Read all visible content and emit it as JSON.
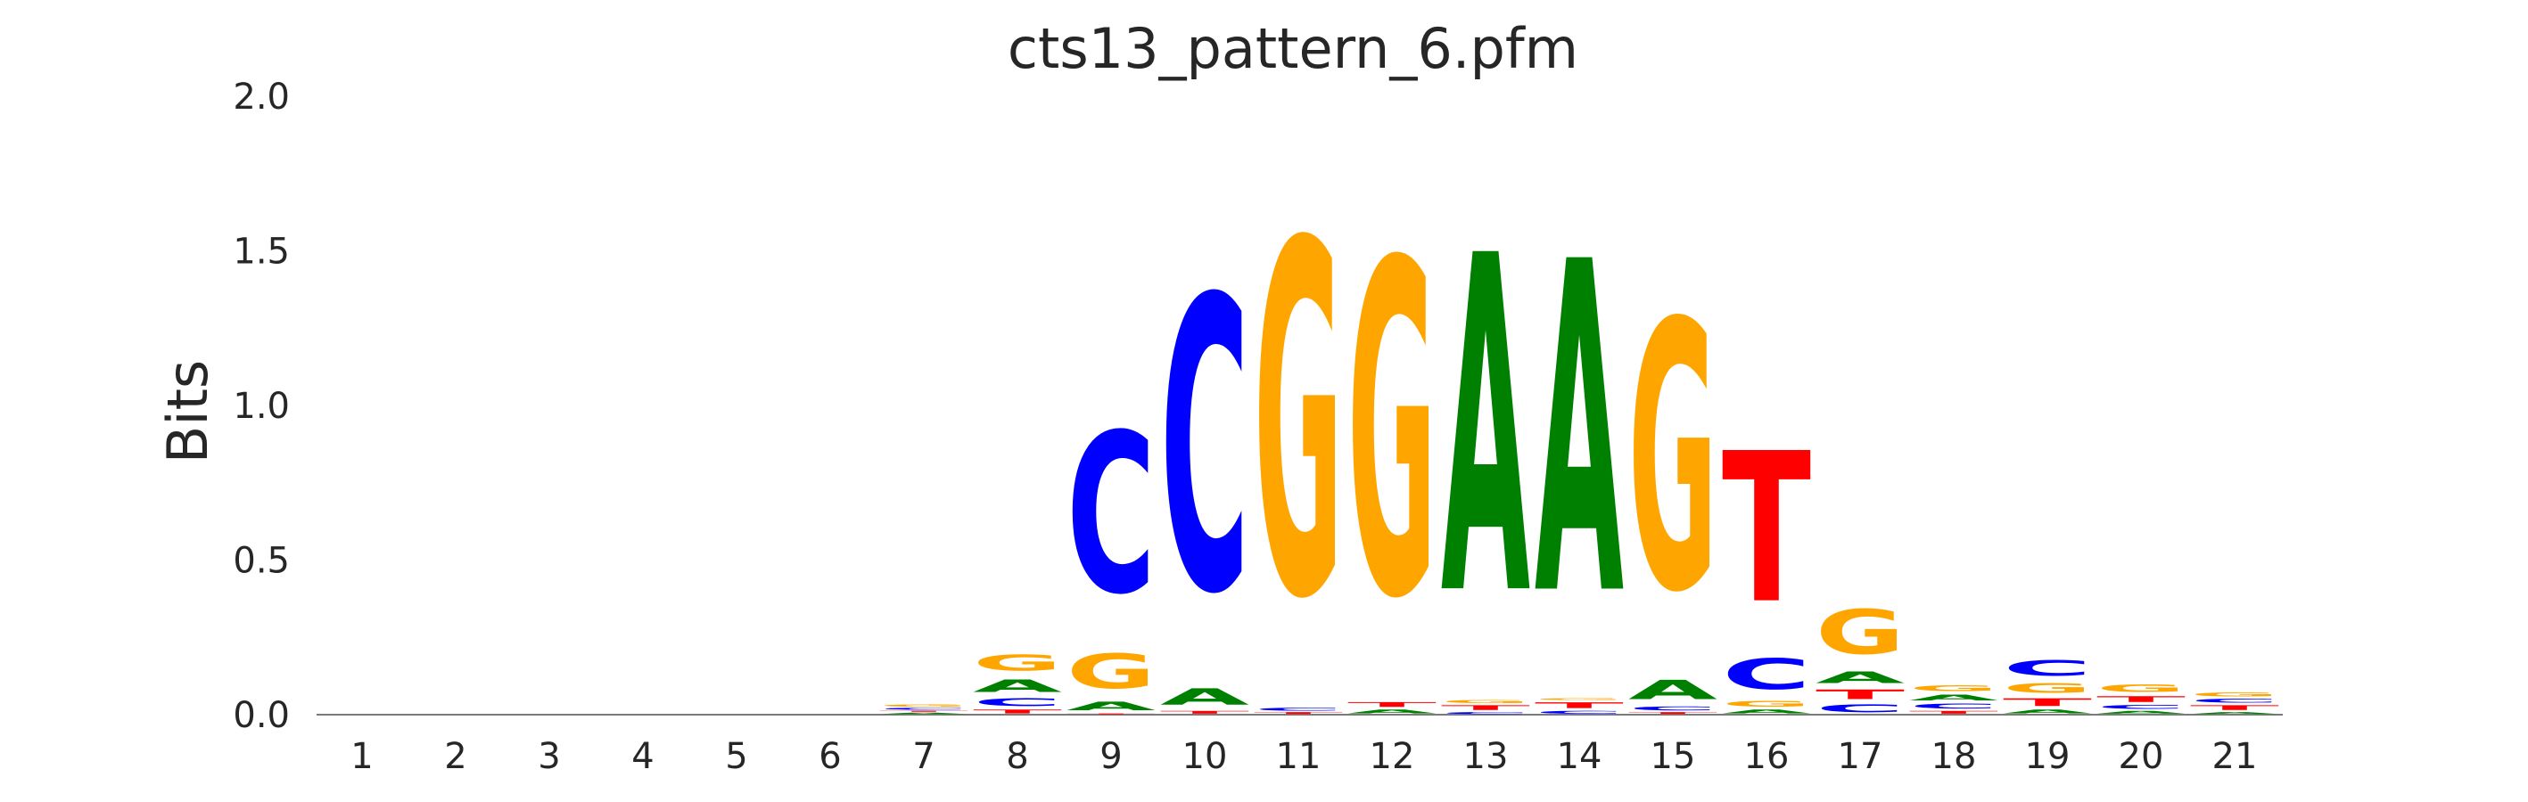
{
  "chart_data": {
    "type": "sequence-logo",
    "title": "cts13_pattern_6.pfm",
    "ylabel": "Bits",
    "xlabel": "",
    "ylim": [
      0,
      2.0
    ],
    "y_ticks": [
      "0.0",
      "0.5",
      "1.0",
      "1.5",
      "2.0"
    ],
    "categories": [
      "1",
      "2",
      "3",
      "4",
      "5",
      "6",
      "7",
      "8",
      "9",
      "10",
      "11",
      "12",
      "13",
      "14",
      "15",
      "16",
      "17",
      "18",
      "19",
      "20",
      "21"
    ],
    "letter_colors": {
      "A": "#008000",
      "C": "#0000ff",
      "G": "#ffa500",
      "T": "#ff0000"
    },
    "positions": [
      {
        "pos": "1",
        "stack": []
      },
      {
        "pos": "2",
        "stack": []
      },
      {
        "pos": "3",
        "stack": []
      },
      {
        "pos": "4",
        "stack": []
      },
      {
        "pos": "5",
        "stack": []
      },
      {
        "pos": "6",
        "stack": []
      },
      {
        "pos": "7",
        "stack": [
          {
            "letter": "A",
            "height": 0.008
          },
          {
            "letter": "T",
            "height": 0.006
          },
          {
            "letter": "C",
            "height": 0.01
          },
          {
            "letter": "G",
            "height": 0.012
          }
        ]
      },
      {
        "pos": "8",
        "stack": [
          {
            "letter": "T",
            "height": 0.02
          },
          {
            "letter": "C",
            "height": 0.04
          },
          {
            "letter": "A",
            "height": 0.065
          },
          {
            "letter": "G",
            "height": 0.085
          }
        ]
      },
      {
        "pos": "9",
        "stack": [
          {
            "letter": "T",
            "height": 0.005
          },
          {
            "letter": "A",
            "height": 0.045
          },
          {
            "letter": "G",
            "height": 0.18
          },
          {
            "letter": "C",
            "height": 0.83
          }
        ]
      },
      {
        "pos": "10",
        "stack": [
          {
            "letter": "T",
            "height": 0.015
          },
          {
            "letter": "A",
            "height": 0.085
          },
          {
            "letter": "C",
            "height": 1.52
          }
        ]
      },
      {
        "pos": "11",
        "stack": [
          {
            "letter": "T",
            "height": 0.01
          },
          {
            "letter": "C",
            "height": 0.015
          },
          {
            "letter": "G",
            "height": 1.83
          }
        ]
      },
      {
        "pos": "12",
        "stack": [
          {
            "letter": "A",
            "height": 0.02
          },
          {
            "letter": "T",
            "height": 0.025
          },
          {
            "letter": "G",
            "height": 1.73
          }
        ]
      },
      {
        "pos": "13",
        "stack": [
          {
            "letter": "C",
            "height": 0.01
          },
          {
            "letter": "T",
            "height": 0.025
          },
          {
            "letter": "G",
            "height": 0.015
          },
          {
            "letter": "A",
            "height": 1.75
          }
        ]
      },
      {
        "pos": "14",
        "stack": [
          {
            "letter": "C",
            "height": 0.015
          },
          {
            "letter": "T",
            "height": 0.03
          },
          {
            "letter": "G",
            "height": 0.01
          },
          {
            "letter": "A",
            "height": 1.72
          }
        ]
      },
      {
        "pos": "15",
        "stack": [
          {
            "letter": "T",
            "height": 0.01
          },
          {
            "letter": "C",
            "height": 0.02
          },
          {
            "letter": "A",
            "height": 0.1
          },
          {
            "letter": "G",
            "height": 1.39
          }
        ]
      },
      {
        "pos": "16",
        "stack": [
          {
            "letter": "A",
            "height": 0.02
          },
          {
            "letter": "G",
            "height": 0.03
          },
          {
            "letter": "C",
            "height": 0.16
          },
          {
            "letter": "T",
            "height": 0.78
          }
        ]
      },
      {
        "pos": "17",
        "stack": [
          {
            "letter": "C",
            "height": 0.04
          },
          {
            "letter": "T",
            "height": 0.05
          },
          {
            "letter": "A",
            "height": 0.06
          },
          {
            "letter": "G",
            "height": 0.23
          }
        ]
      },
      {
        "pos": "18",
        "stack": [
          {
            "letter": "T",
            "height": 0.015
          },
          {
            "letter": "C",
            "height": 0.025
          },
          {
            "letter": "A",
            "height": 0.03
          },
          {
            "letter": "G",
            "height": 0.03
          }
        ]
      },
      {
        "pos": "19",
        "stack": [
          {
            "letter": "A",
            "height": 0.02
          },
          {
            "letter": "T",
            "height": 0.04
          },
          {
            "letter": "G",
            "height": 0.05
          },
          {
            "letter": "C",
            "height": 0.08
          }
        ]
      },
      {
        "pos": "20",
        "stack": [
          {
            "letter": "A",
            "height": 0.015
          },
          {
            "letter": "C",
            "height": 0.02
          },
          {
            "letter": "T",
            "height": 0.03
          },
          {
            "letter": "G",
            "height": 0.04
          }
        ]
      },
      {
        "pos": "21",
        "stack": [
          {
            "letter": "A",
            "height": 0.01
          },
          {
            "letter": "T",
            "height": 0.025
          },
          {
            "letter": "C",
            "height": 0.02
          },
          {
            "letter": "G",
            "height": 0.02
          }
        ]
      }
    ]
  }
}
